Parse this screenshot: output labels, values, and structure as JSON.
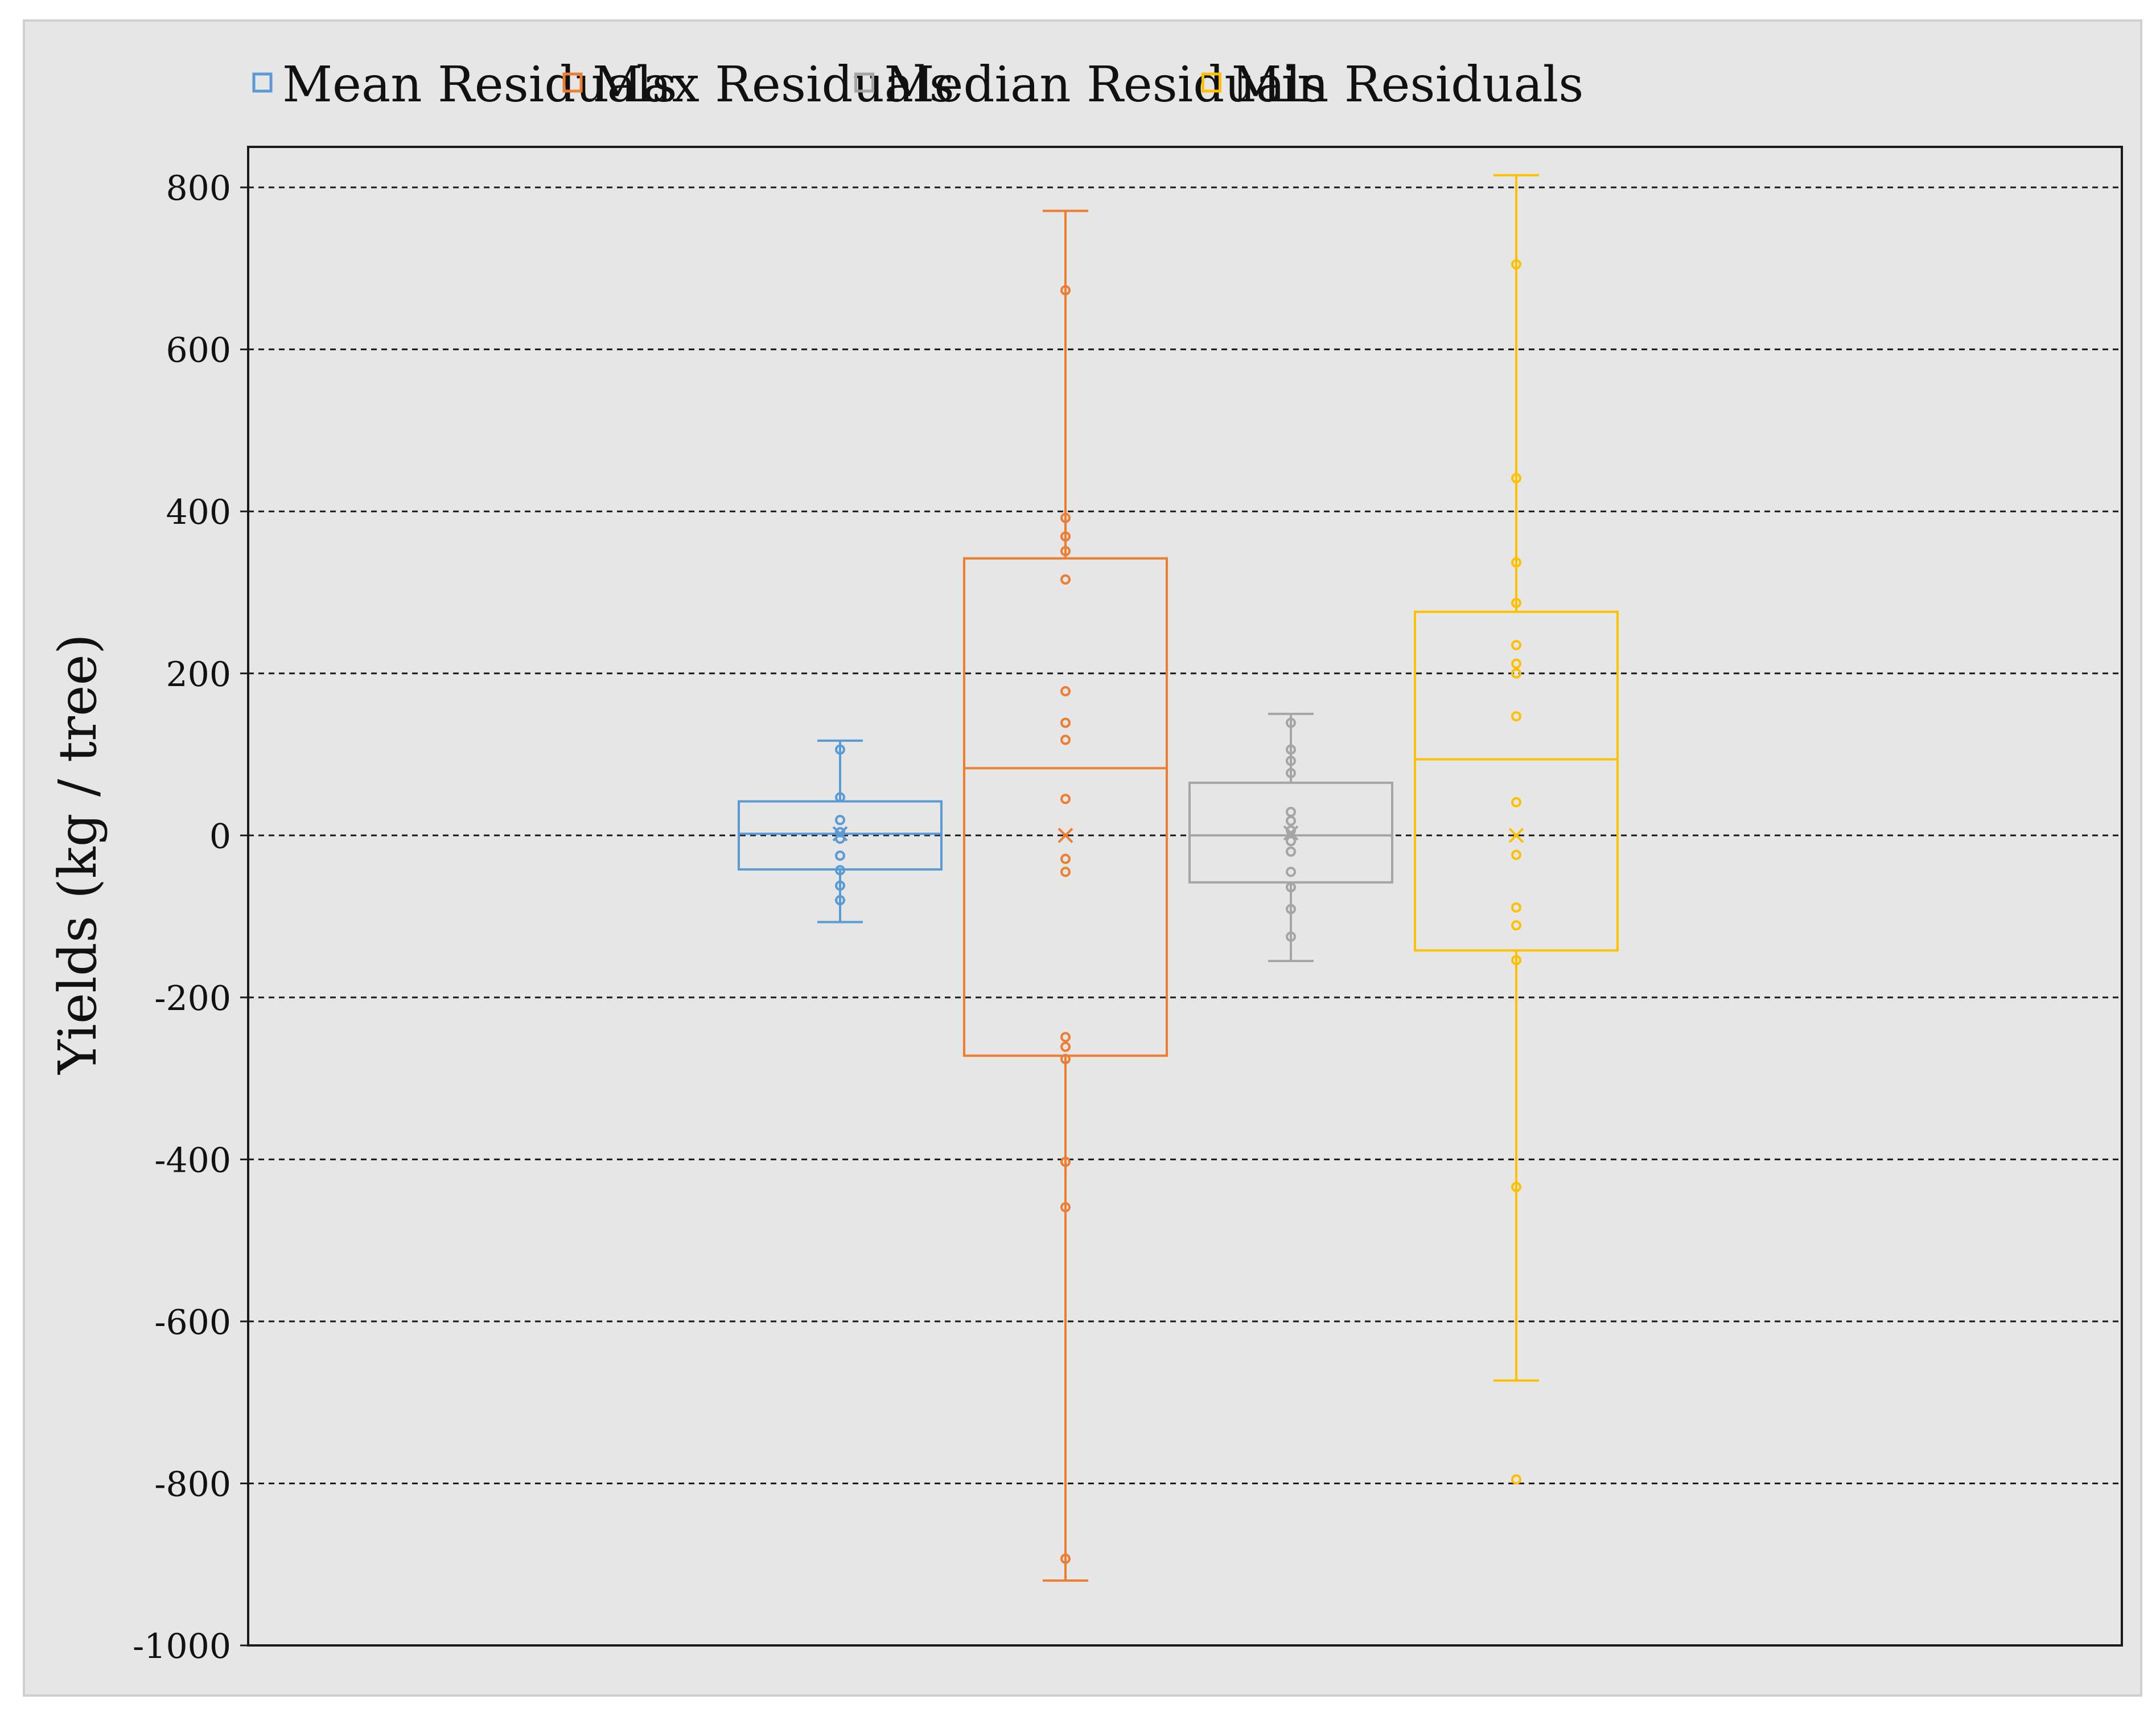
{
  "chart_data": {
    "type": "box",
    "title": "",
    "xlabel": "",
    "ylabel": "Yields (kg / tree)",
    "ylim": [
      -1000,
      850
    ],
    "yticks": [
      800,
      600,
      400,
      200,
      0,
      -200,
      -400,
      -600,
      -800,
      -1000
    ],
    "grid": true,
    "legend_position": "top",
    "series": [
      {
        "name": "Mean Residuals",
        "color": "#5B9BD5",
        "q1": -42,
        "median": 2,
        "q3": 42,
        "whisker_low": -107,
        "whisker_high": 117,
        "mean": 2,
        "points": [
          106,
          47,
          19,
          4,
          -4,
          -25,
          -43,
          -62,
          -80
        ]
      },
      {
        "name": "Max Residuals",
        "color": "#ED7D31",
        "q1": -272,
        "median": 83,
        "q3": 342,
        "whisker_low": -920,
        "whisker_high": 771,
        "mean": 0,
        "points": [
          673,
          392,
          369,
          351,
          316,
          178,
          139,
          118,
          45,
          -29,
          -45,
          -249,
          -261,
          -276,
          -403,
          -459,
          -893
        ]
      },
      {
        "name": "Median Residuals",
        "color": "#A5A5A5",
        "q1": -58,
        "median": 0,
        "q3": 65,
        "whisker_low": -155,
        "whisker_high": 150,
        "mean": 3,
        "points": [
          139,
          106,
          92,
          77,
          29,
          18,
          6,
          -7,
          -20,
          -45,
          -64,
          -91,
          -125
        ]
      },
      {
        "name": "Min Residuals",
        "color": "#FFC000",
        "q1": -142,
        "median": 94,
        "q3": 276,
        "whisker_low": -673,
        "whisker_high": 815,
        "mean": 0,
        "points": [
          705,
          441,
          337,
          287,
          235,
          212,
          200,
          147,
          41,
          -24,
          -89,
          -111,
          -154,
          -434,
          -795
        ]
      }
    ]
  }
}
